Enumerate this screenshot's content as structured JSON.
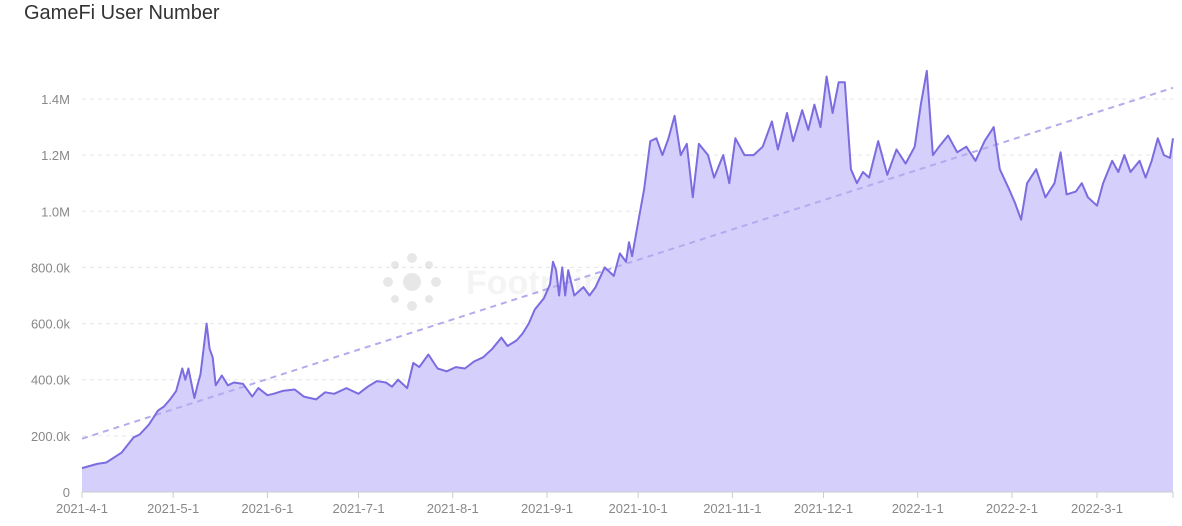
{
  "chart_data": {
    "type": "area",
    "title": "GameFi User Number",
    "watermark": "Footprint Analytics",
    "xlabel": "",
    "ylabel": "",
    "x_start": "2021-04-01",
    "x_end": "2022-03-26",
    "ylim": [
      0,
      1400000
    ],
    "yticks": [
      0,
      200000,
      400000,
      600000,
      800000,
      1000000,
      1200000,
      1400000
    ],
    "ytick_labels": [
      "0",
      "200.0k",
      "400.0k",
      "600.0k",
      "800.0k",
      "1.0M",
      "1.2M",
      "1.4M"
    ],
    "xticks": [
      "2021-04-01",
      "2021-05-01",
      "2021-06-01",
      "2021-07-01",
      "2021-08-01",
      "2021-09-01",
      "2021-10-01",
      "2021-11-01",
      "2021-12-01",
      "2022-01-01",
      "2022-02-01",
      "2022-03-01"
    ],
    "xtick_labels": [
      "2021-4-1",
      "2021-5-1",
      "2021-6-1",
      "2021-7-1",
      "2021-8-1",
      "2021-9-1",
      "2021-10-1",
      "2021-11-1",
      "2021-12-1",
      "2022-1-1",
      "2022-2-1",
      "2022-3-1"
    ],
    "grid": true,
    "legend": "none",
    "colors": {
      "line": "#7b6ce0",
      "fill": "#d5cffc",
      "trend": "#b4aaee",
      "grid": "#e6e6e6",
      "axis": "#cccccc"
    },
    "series": [
      {
        "values": [
          [
            "2021-04-01",
            85000
          ],
          [
            "2021-04-06",
            100000
          ],
          [
            "2021-04-09",
            105000
          ],
          [
            "2021-04-14",
            140000
          ],
          [
            "2021-04-18",
            195000
          ],
          [
            "2021-04-20",
            205000
          ],
          [
            "2021-04-23",
            240000
          ],
          [
            "2021-04-26",
            290000
          ],
          [
            "2021-04-28",
            305000
          ],
          [
            "2021-04-30",
            330000
          ],
          [
            "2021-05-02",
            360000
          ],
          [
            "2021-05-04",
            440000
          ],
          [
            "2021-05-05",
            400000
          ],
          [
            "2021-05-06",
            440000
          ],
          [
            "2021-05-08",
            335000
          ],
          [
            "2021-05-09",
            380000
          ],
          [
            "2021-05-10",
            420000
          ],
          [
            "2021-05-11",
            510000
          ],
          [
            "2021-05-12",
            600000
          ],
          [
            "2021-05-13",
            510000
          ],
          [
            "2021-05-14",
            480000
          ],
          [
            "2021-05-15",
            380000
          ],
          [
            "2021-05-17",
            415000
          ],
          [
            "2021-05-19",
            380000
          ],
          [
            "2021-05-21",
            390000
          ],
          [
            "2021-05-24",
            385000
          ],
          [
            "2021-05-27",
            340000
          ],
          [
            "2021-05-29",
            370000
          ],
          [
            "2021-06-01",
            345000
          ],
          [
            "2021-06-03",
            350000
          ],
          [
            "2021-06-06",
            360000
          ],
          [
            "2021-06-10",
            365000
          ],
          [
            "2021-06-13",
            340000
          ],
          [
            "2021-06-17",
            330000
          ],
          [
            "2021-06-20",
            355000
          ],
          [
            "2021-06-23",
            350000
          ],
          [
            "2021-06-27",
            370000
          ],
          [
            "2021-07-01",
            350000
          ],
          [
            "2021-07-04",
            375000
          ],
          [
            "2021-07-07",
            395000
          ],
          [
            "2021-07-10",
            390000
          ],
          [
            "2021-07-12",
            375000
          ],
          [
            "2021-07-14",
            400000
          ],
          [
            "2021-07-17",
            370000
          ],
          [
            "2021-07-19",
            460000
          ],
          [
            "2021-07-21",
            445000
          ],
          [
            "2021-07-24",
            490000
          ],
          [
            "2021-07-27",
            440000
          ],
          [
            "2021-07-30",
            430000
          ],
          [
            "2021-08-02",
            445000
          ],
          [
            "2021-08-05",
            440000
          ],
          [
            "2021-08-08",
            465000
          ],
          [
            "2021-08-11",
            480000
          ],
          [
            "2021-08-14",
            510000
          ],
          [
            "2021-08-17",
            550000
          ],
          [
            "2021-08-19",
            520000
          ],
          [
            "2021-08-22",
            540000
          ],
          [
            "2021-08-24",
            565000
          ],
          [
            "2021-08-26",
            600000
          ],
          [
            "2021-08-28",
            650000
          ],
          [
            "2021-08-31",
            690000
          ],
          [
            "2021-09-02",
            740000
          ],
          [
            "2021-09-03",
            820000
          ],
          [
            "2021-09-04",
            790000
          ],
          [
            "2021-09-05",
            700000
          ],
          [
            "2021-09-06",
            800000
          ],
          [
            "2021-09-07",
            700000
          ],
          [
            "2021-09-08",
            790000
          ],
          [
            "2021-09-10",
            700000
          ],
          [
            "2021-09-13",
            730000
          ],
          [
            "2021-09-15",
            700000
          ],
          [
            "2021-09-17",
            730000
          ],
          [
            "2021-09-20",
            800000
          ],
          [
            "2021-09-23",
            770000
          ],
          [
            "2021-09-25",
            850000
          ],
          [
            "2021-09-27",
            820000
          ],
          [
            "2021-09-28",
            890000
          ],
          [
            "2021-09-29",
            840000
          ],
          [
            "2021-10-01",
            960000
          ],
          [
            "2021-10-03",
            1080000
          ],
          [
            "2021-10-05",
            1250000
          ],
          [
            "2021-10-07",
            1260000
          ],
          [
            "2021-10-09",
            1200000
          ],
          [
            "2021-10-11",
            1260000
          ],
          [
            "2021-10-13",
            1340000
          ],
          [
            "2021-10-15",
            1200000
          ],
          [
            "2021-10-17",
            1240000
          ],
          [
            "2021-10-19",
            1050000
          ],
          [
            "2021-10-21",
            1240000
          ],
          [
            "2021-10-24",
            1200000
          ],
          [
            "2021-10-26",
            1120000
          ],
          [
            "2021-10-29",
            1200000
          ],
          [
            "2021-10-31",
            1100000
          ],
          [
            "2021-11-02",
            1260000
          ],
          [
            "2021-11-05",
            1200000
          ],
          [
            "2021-11-08",
            1200000
          ],
          [
            "2021-11-11",
            1230000
          ],
          [
            "2021-11-14",
            1320000
          ],
          [
            "2021-11-16",
            1220000
          ],
          [
            "2021-11-19",
            1350000
          ],
          [
            "2021-11-21",
            1250000
          ],
          [
            "2021-11-24",
            1360000
          ],
          [
            "2021-11-26",
            1290000
          ],
          [
            "2021-11-28",
            1380000
          ],
          [
            "2021-11-30",
            1300000
          ],
          [
            "2021-12-02",
            1480000
          ],
          [
            "2021-12-04",
            1350000
          ],
          [
            "2021-12-06",
            1460000
          ],
          [
            "2021-12-08",
            1460000
          ],
          [
            "2021-12-10",
            1150000
          ],
          [
            "2021-12-12",
            1100000
          ],
          [
            "2021-12-14",
            1140000
          ],
          [
            "2021-12-16",
            1120000
          ],
          [
            "2021-12-19",
            1250000
          ],
          [
            "2021-12-22",
            1130000
          ],
          [
            "2021-12-25",
            1220000
          ],
          [
            "2021-12-28",
            1170000
          ],
          [
            "2021-12-31",
            1230000
          ],
          [
            "2022-01-02",
            1380000
          ],
          [
            "2022-01-04",
            1500000
          ],
          [
            "2022-01-06",
            1200000
          ],
          [
            "2022-01-08",
            1230000
          ],
          [
            "2022-01-11",
            1270000
          ],
          [
            "2022-01-14",
            1210000
          ],
          [
            "2022-01-17",
            1230000
          ],
          [
            "2022-01-20",
            1180000
          ],
          [
            "2022-01-23",
            1250000
          ],
          [
            "2022-01-26",
            1300000
          ],
          [
            "2022-01-28",
            1150000
          ],
          [
            "2022-01-31",
            1080000
          ],
          [
            "2022-02-02",
            1030000
          ],
          [
            "2022-02-04",
            970000
          ],
          [
            "2022-02-06",
            1100000
          ],
          [
            "2022-02-09",
            1150000
          ],
          [
            "2022-02-12",
            1050000
          ],
          [
            "2022-02-15",
            1100000
          ],
          [
            "2022-02-17",
            1210000
          ],
          [
            "2022-02-19",
            1060000
          ],
          [
            "2022-02-22",
            1070000
          ],
          [
            "2022-02-24",
            1100000
          ],
          [
            "2022-02-26",
            1050000
          ],
          [
            "2022-03-01",
            1020000
          ],
          [
            "2022-03-03",
            1100000
          ],
          [
            "2022-03-06",
            1180000
          ],
          [
            "2022-03-08",
            1140000
          ],
          [
            "2022-03-10",
            1200000
          ],
          [
            "2022-03-12",
            1140000
          ],
          [
            "2022-03-15",
            1180000
          ],
          [
            "2022-03-17",
            1120000
          ],
          [
            "2022-03-19",
            1180000
          ],
          [
            "2022-03-21",
            1260000
          ],
          [
            "2022-03-23",
            1200000
          ],
          [
            "2022-03-25",
            1190000
          ],
          [
            "2022-03-26",
            1260000
          ]
        ]
      }
    ],
    "trendline": {
      "start": [
        "2021-04-01",
        190000
      ],
      "end": [
        "2022-03-26",
        1440000
      ]
    }
  }
}
